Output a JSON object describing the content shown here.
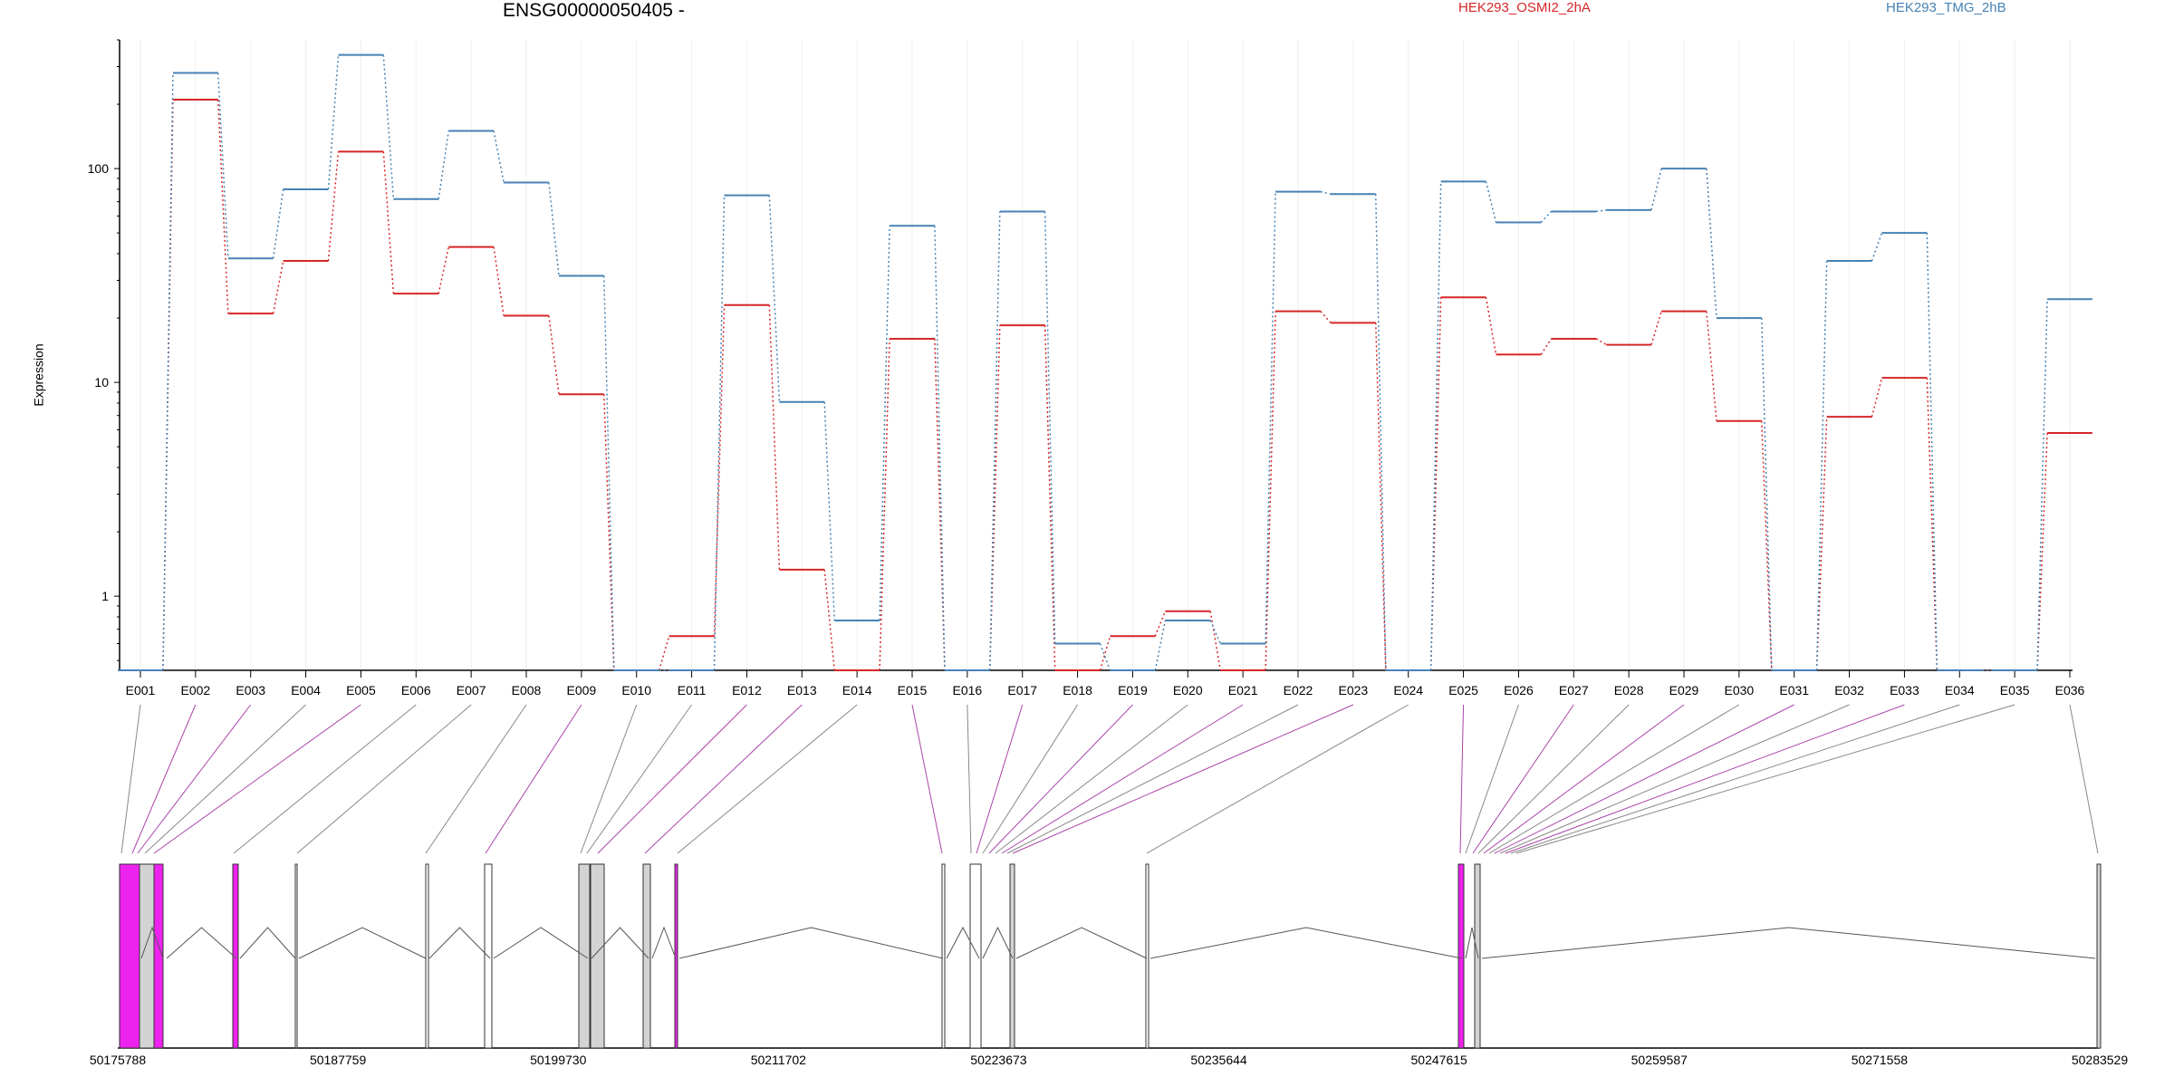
{
  "chart_data": {
    "type": "line",
    "title": "ENSG00000050405 -",
    "ylabel": "Expression",
    "y_scale": "log",
    "ylim": [
      0.45,
      400
    ],
    "y_ticks": [
      {
        "value": 1,
        "label": "1"
      },
      {
        "value": 10,
        "label": "10"
      },
      {
        "value": 100,
        "label": "100"
      }
    ],
    "grid": true,
    "legend_position": "top-right",
    "categories": [
      "E001",
      "E002",
      "E003",
      "E004",
      "E005",
      "E006",
      "E007",
      "E008",
      "E009",
      "E010",
      "E011",
      "E012",
      "E013",
      "E014",
      "E015",
      "E016",
      "E017",
      "E018",
      "E019",
      "E020",
      "E021",
      "E022",
      "E023",
      "E024",
      "E025",
      "E026",
      "E027",
      "E028",
      "E029",
      "E030",
      "E031",
      "E032",
      "E033",
      "E034",
      "E035",
      "E036"
    ],
    "series": [
      {
        "name": "HEK293_OSMI2_2hA",
        "color": "#d62728",
        "values": [
          0.45,
          210,
          21,
          37,
          120,
          26,
          43,
          20.5,
          8.8,
          0.45,
          0.65,
          23,
          1.33,
          0.45,
          16,
          0.45,
          18.5,
          0.45,
          0.65,
          0.85,
          0.45,
          21.5,
          19,
          0.45,
          25,
          13.5,
          16,
          15,
          21.5,
          6.6,
          0.45,
          6.9,
          10.5,
          0.45,
          0.45,
          5.8
        ]
      },
      {
        "name": "HEK293_TMG_2hB",
        "color": "#4682b4",
        "values": [
          0.45,
          280,
          38,
          80,
          340,
          72,
          150,
          86,
          31.5,
          0.45,
          0.45,
          75,
          8.1,
          0.77,
          54,
          0.45,
          63,
          0.6,
          0.45,
          0.77,
          0.6,
          78,
          76,
          0.45,
          87,
          56,
          63,
          64,
          100,
          20,
          0.45,
          37,
          50,
          0.45,
          0.45,
          24.5
        ]
      }
    ]
  },
  "gene_track": {
    "coord_labels": [
      "50175788",
      "50187759",
      "50199730",
      "50211702",
      "50223673",
      "50235644",
      "50247615",
      "50259587",
      "50271558",
      "50283529"
    ]
  },
  "colors": {
    "exon_highlight": "#ee22ee",
    "exon_normal": "#d3d3d3",
    "connector_grey": "#888888",
    "connector_purple": "#aa44aa"
  }
}
